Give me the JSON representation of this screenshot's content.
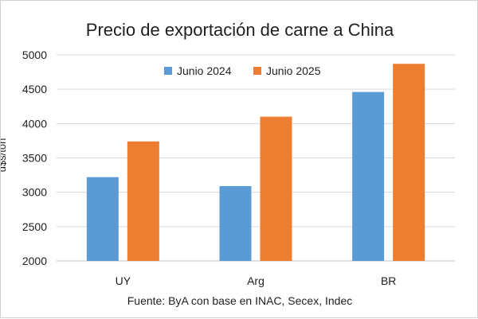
{
  "chart_data": {
    "type": "bar",
    "title": "Precio de exportación de carne a China",
    "ylabel": "u$s/ton",
    "xlabel": "",
    "categories": [
      "UY",
      "Arg",
      "BR"
    ],
    "series": [
      {
        "name": "Junio 2024",
        "values": [
          3220,
          3090,
          4460
        ]
      },
      {
        "name": "Junio 2025",
        "values": [
          3740,
          4100,
          4870
        ]
      }
    ],
    "ylim": [
      2000,
      5000
    ],
    "yticks": [
      2000,
      2500,
      3000,
      3500,
      4000,
      4500,
      5000
    ],
    "grid": true,
    "legend": "top",
    "source": "Fuente: ByA con base en INAC, Secex, Indec",
    "colors": {
      "series_1": "#5b9bd5",
      "series_2": "#ed7d31",
      "grid": "#d9d9d9",
      "axis": "#bfbfbf"
    }
  }
}
